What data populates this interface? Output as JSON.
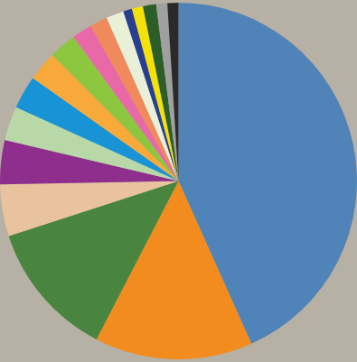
{
  "chart_data": {
    "type": "pie",
    "values": [
      43.3,
      14.3,
      12.4,
      4.7,
      4.0,
      3.1,
      3.0,
      2.7,
      2.5,
      1.8,
      1.6,
      1.6,
      0.8,
      1.0,
      1.2,
      1.0,
      1.0
    ],
    "colors": [
      "#5083b8",
      "#f28c1e",
      "#4a8540",
      "#e8c39e",
      "#8e2f8e",
      "#b9d8a8",
      "#1793d6",
      "#f7a93a",
      "#8dc63f",
      "#e868a8",
      "#f08a5d",
      "#e9f0d8",
      "#283e8f",
      "#f5e10a",
      "#2d5e2a",
      "#a0a0a0",
      "#2a2a2a"
    ],
    "data_labels": false
  }
}
